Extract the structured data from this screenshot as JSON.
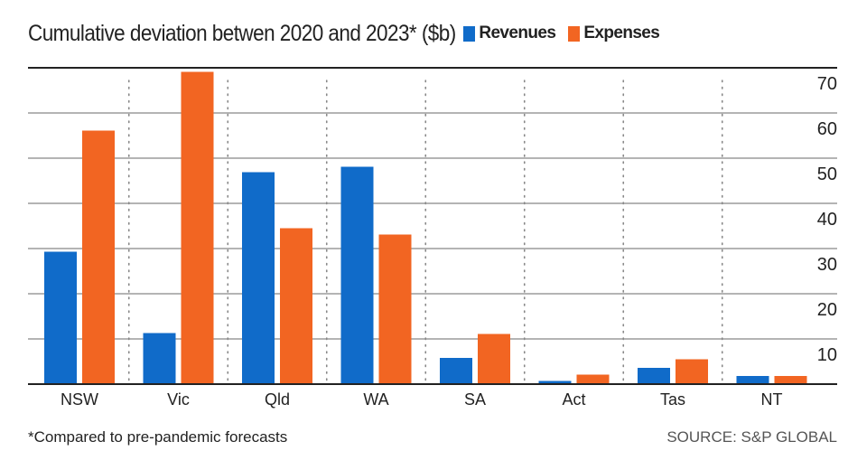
{
  "chart_data": {
    "type": "bar",
    "title": "Cumulative deviation betwen 2020 and 2023* ($b)",
    "categories": [
      "NSW",
      "Vic",
      "Qld",
      "WA",
      "SA",
      "Act",
      "Tas",
      "NT"
    ],
    "series": [
      {
        "name": "Revenues",
        "color": "#106bc9",
        "values": [
          29.3,
          11.3,
          46.9,
          48.1,
          5.8,
          0.7,
          3.6,
          1.8
        ]
      },
      {
        "name": "Expenses",
        "color": "#f26522",
        "values": [
          56.1,
          69.1,
          34.5,
          33.1,
          11.1,
          2.1,
          5.5,
          1.8
        ]
      }
    ],
    "ylim": [
      0,
      70
    ],
    "yticks": [
      10,
      20,
      30,
      40,
      50,
      60,
      70
    ],
    "grid": true,
    "legend": "top-right",
    "footnote": "*Compared to pre-pandemic forecasts",
    "source": "SOURCE: S&P GLOBAL"
  }
}
